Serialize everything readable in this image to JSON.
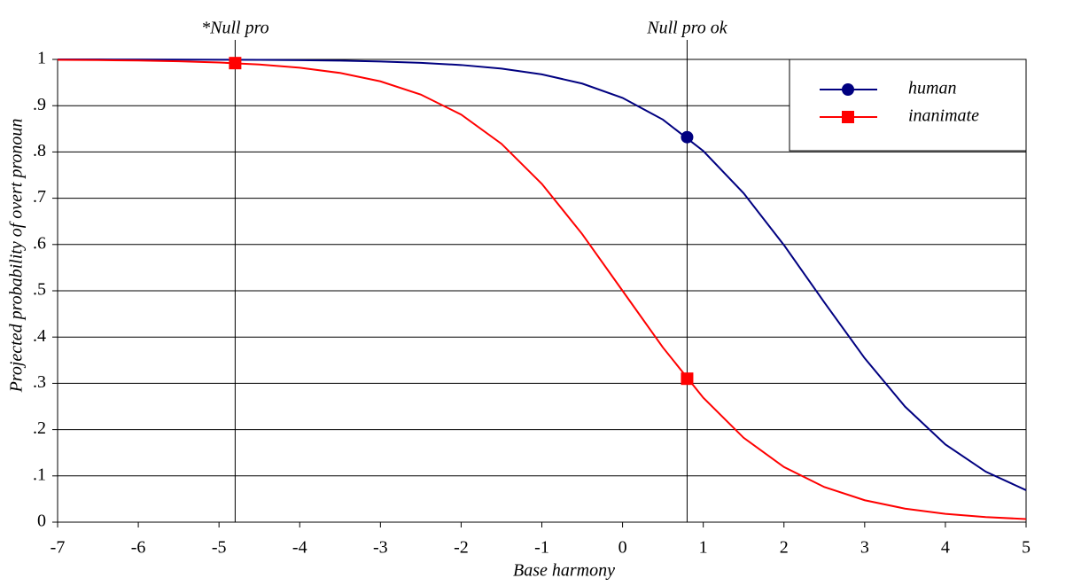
{
  "chart_data": {
    "type": "line",
    "x_label": "Base harmony",
    "y_label": "Projected probability of overt pronoun",
    "x": [
      -7,
      -6.5,
      -6,
      -5.5,
      -5,
      -4.5,
      -4,
      -3.5,
      -3,
      -2.5,
      -2,
      -1.5,
      -1,
      -0.5,
      0,
      0.5,
      1,
      1.5,
      2,
      2.5,
      3,
      3.5,
      4,
      4.5,
      5
    ],
    "series": [
      {
        "name": "human",
        "color": "#000080",
        "marker": "circle",
        "values": [
          0.9999,
          0.9999,
          0.9998,
          0.9996,
          0.9994,
          0.999,
          0.9983,
          0.9973,
          0.9955,
          0.9926,
          0.9879,
          0.9802,
          0.9677,
          0.9478,
          0.9168,
          0.8699,
          0.8022,
          0.7109,
          0.5987,
          0.475,
          0.3543,
          0.2497,
          0.168,
          0.1091,
          0.0691
        ],
        "marker_x": [
          0.8
        ],
        "marker_values": [
          0.832
        ]
      },
      {
        "name": "inanimate",
        "color": "#ff0000",
        "marker": "square",
        "values": [
          0.9991,
          0.9985,
          0.9975,
          0.9959,
          0.9933,
          0.989,
          0.982,
          0.9707,
          0.9526,
          0.9241,
          0.8808,
          0.8176,
          0.7311,
          0.6225,
          0.5,
          0.3775,
          0.2689,
          0.1824,
          0.1192,
          0.0759,
          0.0474,
          0.0293,
          0.018,
          0.011,
          0.0067
        ],
        "marker_x": [
          -4.8,
          0.8
        ],
        "marker_values": [
          0.992,
          0.31
        ]
      }
    ],
    "annotations": [
      {
        "x": -4.8,
        "label": "*Null pro"
      },
      {
        "x": 0.8,
        "label": "Null pro ok"
      }
    ],
    "xlim": [
      -7,
      5
    ],
    "xticks": [
      -7,
      -6,
      -5,
      -4,
      -3,
      -2,
      -1,
      0,
      1,
      2,
      3,
      4,
      5
    ],
    "ylim": [
      0,
      1
    ],
    "yticks": [
      0,
      {
        "value": 0.1,
        "label": ".1"
      },
      {
        "value": 0.2,
        "label": ".2"
      },
      {
        "value": 0.3,
        "label": ".3"
      },
      {
        "value": 0.4,
        "label": ".4"
      },
      {
        "value": 0.5,
        "label": ".5"
      },
      {
        "value": 0.6,
        "label": ".6"
      },
      {
        "value": 0.7,
        "label": ".7"
      },
      {
        "value": 0.8,
        "label": ".8"
      },
      {
        "value": 0.9,
        "label": ".9"
      },
      1
    ],
    "grid": true,
    "legend": "upper right"
  }
}
